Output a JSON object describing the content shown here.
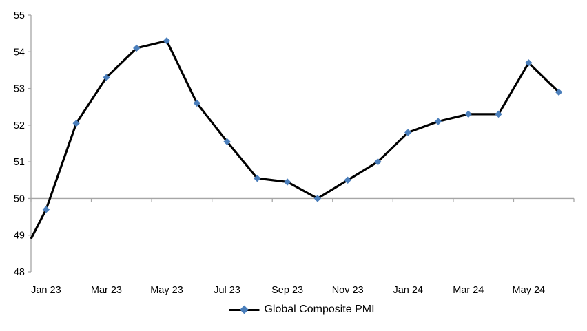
{
  "legend": {
    "label": "Global Composite PMI"
  },
  "colors": {
    "line": "#000000",
    "marker": "#4a7ebb",
    "axis": "#a6a6a6",
    "text": "#000000",
    "background": "#ffffff"
  },
  "chart_data": {
    "type": "line",
    "title": "",
    "xlabel": "",
    "ylabel": "",
    "categories": [
      "Jan 23",
      "Feb 23",
      "Mar 23",
      "Apr 23",
      "May 23",
      "Jun 23",
      "Jul 23",
      "Aug 23",
      "Sep 23",
      "Oct 23",
      "Nov 23",
      "Dec 23",
      "Jan 24",
      "Feb 24",
      "Mar 24",
      "Apr 24",
      "May 24",
      "Jun 24"
    ],
    "series": [
      {
        "name": "Global Composite PMI",
        "marker": "diamond",
        "values": [
          49.7,
          52.05,
          53.3,
          54.1,
          54.3,
          52.6,
          51.55,
          50.55,
          50.45,
          50.0,
          50.5,
          51.0,
          51.8,
          52.1,
          52.3,
          52.3,
          53.7,
          52.9
        ]
      }
    ],
    "lead_in_value_at_left_edge": 48.9,
    "ylim": [
      48,
      55
    ],
    "yticks": [
      55,
      54,
      53,
      52,
      51,
      50,
      49,
      48
    ],
    "xtick_labels": [
      "Jan 23",
      "Mar 23",
      "May 23",
      "Jul 23",
      "Sep 23",
      "Nov 23",
      "Jan 24",
      "Mar 24",
      "May 24"
    ],
    "xtick_label_interval": 2,
    "axis_crosses_at": 50,
    "grid": false,
    "legend_position": "bottom"
  }
}
